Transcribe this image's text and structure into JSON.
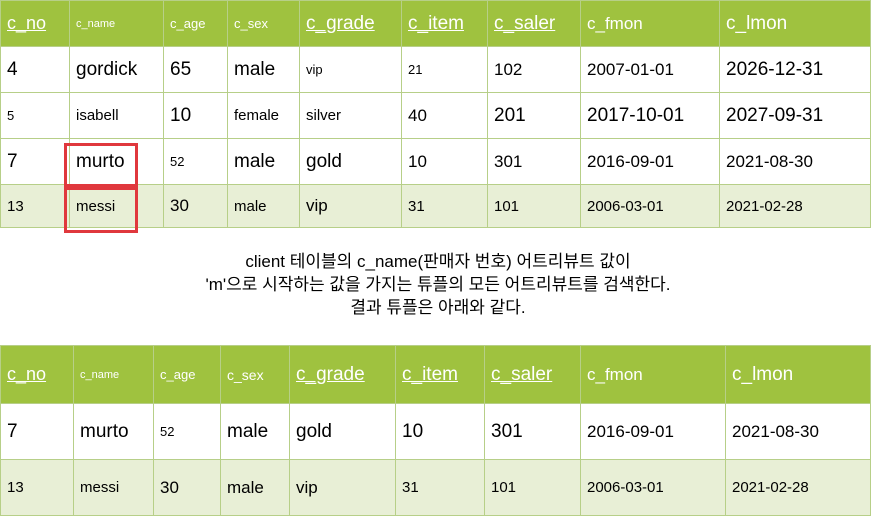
{
  "columns": [
    "c_no",
    "c_name",
    "c_age",
    "c_sex",
    "c_grade",
    "c_item",
    "c_saler",
    "c_fmon",
    "c_lmon"
  ],
  "table1": {
    "rows": [
      [
        "4",
        "gordick",
        "65",
        "male",
        "vip",
        "21",
        "102",
        "2007-01-01",
        "2026-12-31"
      ],
      [
        "5",
        "isabell",
        "10",
        "female",
        "silver",
        "40",
        "201",
        "2017-10-01",
        "2027-09-31"
      ],
      [
        "7",
        "murto",
        "52",
        "male",
        "gold",
        "10",
        "301",
        "2016-09-01",
        "2021-08-30"
      ],
      [
        "13",
        "messi",
        "30",
        "male",
        "vip",
        "31",
        "101",
        "2006-03-01",
        "2021-02-28"
      ]
    ]
  },
  "caption": [
    "client 테이블의 c_name(판매자 번호) 어트리뷰트 값이",
    "'m'으로 시작하는 값을 가지는 튜플의 모든 어트리뷰트를 검색한다.",
    "결과 튜플은 아래와 같다."
  ],
  "table2": {
    "rows": [
      [
        "7",
        "murto",
        "52",
        "male",
        "gold",
        "10",
        "301",
        "2016-09-01",
        "2021-08-30"
      ],
      [
        "13",
        "messi",
        "30",
        "male",
        "vip",
        "31",
        "101",
        "2006-03-01",
        "2021-02-28"
      ]
    ]
  },
  "colors": {
    "header_bg": "#9fc23f",
    "alt_row_bg": "#e8efd6",
    "highlight_border": "#e0383d"
  }
}
